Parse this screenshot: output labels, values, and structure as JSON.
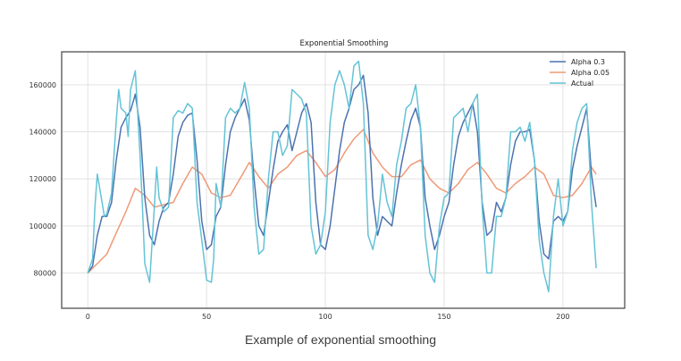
{
  "caption": "Example of exponential smoothing",
  "chart_data": {
    "type": "line",
    "title": "Exponential Smoothing",
    "xlabel": "",
    "ylabel": "",
    "xlim": [
      -11,
      226
    ],
    "ylim": [
      65000,
      174000
    ],
    "xticks": [
      0,
      50,
      100,
      150,
      200
    ],
    "yticks": [
      80000,
      100000,
      120000,
      140000,
      160000
    ],
    "grid": true,
    "legend_position": "top-right",
    "series": [
      {
        "name": "Alpha 0.3",
        "color": "#4c72b0",
        "points": [
          [
            0,
            80000
          ],
          [
            2,
            83000
          ],
          [
            4,
            96000
          ],
          [
            6,
            104000
          ],
          [
            8,
            104000
          ],
          [
            10,
            110000
          ],
          [
            12,
            128000
          ],
          [
            14,
            142000
          ],
          [
            16,
            146000
          ],
          [
            18,
            149000
          ],
          [
            20,
            156000
          ],
          [
            22,
            142000
          ],
          [
            24,
            112000
          ],
          [
            26,
            96000
          ],
          [
            28,
            92000
          ],
          [
            30,
            102000
          ],
          [
            32,
            108000
          ],
          [
            34,
            110000
          ],
          [
            36,
            122000
          ],
          [
            38,
            138000
          ],
          [
            40,
            144000
          ],
          [
            42,
            147000
          ],
          [
            44,
            148000
          ],
          [
            46,
            128000
          ],
          [
            48,
            102000
          ],
          [
            50,
            90000
          ],
          [
            52,
            92000
          ],
          [
            54,
            104000
          ],
          [
            56,
            108000
          ],
          [
            58,
            126000
          ],
          [
            60,
            140000
          ],
          [
            62,
            146000
          ],
          [
            64,
            150000
          ],
          [
            66,
            154000
          ],
          [
            68,
            145000
          ],
          [
            70,
            120000
          ],
          [
            72,
            100000
          ],
          [
            74,
            96000
          ],
          [
            76,
            110000
          ],
          [
            78,
            124000
          ],
          [
            80,
            136000
          ],
          [
            82,
            140000
          ],
          [
            84,
            143000
          ],
          [
            86,
            132000
          ],
          [
            88,
            140000
          ],
          [
            90,
            148000
          ],
          [
            92,
            152000
          ],
          [
            94,
            144000
          ],
          [
            96,
            110000
          ],
          [
            98,
            92000
          ],
          [
            100,
            90000
          ],
          [
            102,
            100000
          ],
          [
            104,
            116000
          ],
          [
            106,
            132000
          ],
          [
            108,
            144000
          ],
          [
            110,
            150000
          ],
          [
            112,
            158000
          ],
          [
            114,
            160000
          ],
          [
            116,
            164000
          ],
          [
            118,
            148000
          ],
          [
            120,
            112000
          ],
          [
            122,
            96000
          ],
          [
            124,
            104000
          ],
          [
            126,
            102000
          ],
          [
            128,
            100000
          ],
          [
            130,
            114000
          ],
          [
            132,
            126000
          ],
          [
            134,
            136000
          ],
          [
            136,
            145000
          ],
          [
            138,
            150000
          ],
          [
            140,
            142000
          ],
          [
            142,
            112000
          ],
          [
            144,
            100000
          ],
          [
            146,
            90000
          ],
          [
            148,
            96000
          ],
          [
            150,
            104000
          ],
          [
            152,
            110000
          ],
          [
            154,
            126000
          ],
          [
            156,
            138000
          ],
          [
            158,
            144000
          ],
          [
            160,
            148000
          ],
          [
            162,
            152000
          ],
          [
            164,
            140000
          ],
          [
            166,
            110000
          ],
          [
            168,
            96000
          ],
          [
            170,
            98000
          ],
          [
            172,
            110000
          ],
          [
            174,
            106000
          ],
          [
            176,
            112000
          ],
          [
            178,
            126000
          ],
          [
            180,
            136000
          ],
          [
            182,
            140000
          ],
          [
            184,
            140000
          ],
          [
            186,
            141000
          ],
          [
            188,
            128000
          ],
          [
            190,
            102000
          ],
          [
            192,
            88000
          ],
          [
            194,
            86000
          ],
          [
            196,
            102000
          ],
          [
            198,
            104000
          ],
          [
            200,
            102000
          ],
          [
            202,
            106000
          ],
          [
            204,
            124000
          ],
          [
            206,
            134000
          ],
          [
            208,
            142000
          ],
          [
            210,
            150000
          ],
          [
            212,
            122000
          ],
          [
            214,
            108000
          ]
        ]
      },
      {
        "name": "Alpha 0.05",
        "color": "#ee9a77",
        "points": [
          [
            0,
            80000
          ],
          [
            4,
            84000
          ],
          [
            8,
            88000
          ],
          [
            12,
            97000
          ],
          [
            16,
            106000
          ],
          [
            20,
            116000
          ],
          [
            24,
            113000
          ],
          [
            28,
            108000
          ],
          [
            32,
            109000
          ],
          [
            36,
            110000
          ],
          [
            40,
            118000
          ],
          [
            44,
            125000
          ],
          [
            48,
            122000
          ],
          [
            52,
            114000
          ],
          [
            56,
            112000
          ],
          [
            60,
            113000
          ],
          [
            64,
            120000
          ],
          [
            68,
            127000
          ],
          [
            72,
            121000
          ],
          [
            76,
            116000
          ],
          [
            80,
            122000
          ],
          [
            84,
            125000
          ],
          [
            88,
            130000
          ],
          [
            92,
            132000
          ],
          [
            96,
            127000
          ],
          [
            100,
            121000
          ],
          [
            104,
            124000
          ],
          [
            108,
            131000
          ],
          [
            112,
            137000
          ],
          [
            116,
            141000
          ],
          [
            120,
            131000
          ],
          [
            124,
            125000
          ],
          [
            128,
            121000
          ],
          [
            132,
            121000
          ],
          [
            136,
            126000
          ],
          [
            140,
            128000
          ],
          [
            144,
            120000
          ],
          [
            148,
            116000
          ],
          [
            152,
            114000
          ],
          [
            156,
            118000
          ],
          [
            160,
            124000
          ],
          [
            164,
            127000
          ],
          [
            168,
            122000
          ],
          [
            172,
            116000
          ],
          [
            176,
            114000
          ],
          [
            180,
            118000
          ],
          [
            184,
            121000
          ],
          [
            188,
            125000
          ],
          [
            192,
            122000
          ],
          [
            196,
            113000
          ],
          [
            200,
            112000
          ],
          [
            204,
            113000
          ],
          [
            208,
            118000
          ],
          [
            212,
            125000
          ],
          [
            214,
            122000
          ]
        ]
      },
      {
        "name": "Actual",
        "color": "#64c3d6",
        "points": [
          [
            0,
            80000
          ],
          [
            2,
            86000
          ],
          [
            3,
            108000
          ],
          [
            4,
            122000
          ],
          [
            6,
            110000
          ],
          [
            7,
            104000
          ],
          [
            8,
            105000
          ],
          [
            10,
            114000
          ],
          [
            12,
            145000
          ],
          [
            13,
            158000
          ],
          [
            14,
            150000
          ],
          [
            16,
            148000
          ],
          [
            17,
            138000
          ],
          [
            18,
            158000
          ],
          [
            20,
            166000
          ],
          [
            22,
            130000
          ],
          [
            23,
            108000
          ],
          [
            24,
            84000
          ],
          [
            26,
            76000
          ],
          [
            28,
            108000
          ],
          [
            29,
            125000
          ],
          [
            30,
            112000
          ],
          [
            32,
            106000
          ],
          [
            34,
            108000
          ],
          [
            36,
            146000
          ],
          [
            38,
            149000
          ],
          [
            40,
            148000
          ],
          [
            42,
            152000
          ],
          [
            44,
            150000
          ],
          [
            46,
            110000
          ],
          [
            48,
            94000
          ],
          [
            50,
            77000
          ],
          [
            52,
            76000
          ],
          [
            53,
            86000
          ],
          [
            54,
            118000
          ],
          [
            56,
            108000
          ],
          [
            58,
            146000
          ],
          [
            60,
            150000
          ],
          [
            62,
            148000
          ],
          [
            64,
            150000
          ],
          [
            66,
            161000
          ],
          [
            68,
            150000
          ],
          [
            70,
            108000
          ],
          [
            72,
            88000
          ],
          [
            74,
            90000
          ],
          [
            76,
            120000
          ],
          [
            78,
            140000
          ],
          [
            80,
            140000
          ],
          [
            82,
            130000
          ],
          [
            84,
            134000
          ],
          [
            86,
            158000
          ],
          [
            88,
            156000
          ],
          [
            90,
            154000
          ],
          [
            92,
            148000
          ],
          [
            94,
            100000
          ],
          [
            96,
            88000
          ],
          [
            98,
            92000
          ],
          [
            100,
            106000
          ],
          [
            102,
            144000
          ],
          [
            104,
            160000
          ],
          [
            106,
            166000
          ],
          [
            108,
            160000
          ],
          [
            110,
            150000
          ],
          [
            112,
            168000
          ],
          [
            114,
            170000
          ],
          [
            116,
            152000
          ],
          [
            118,
            96000
          ],
          [
            120,
            90000
          ],
          [
            122,
            100000
          ],
          [
            124,
            122000
          ],
          [
            126,
            110000
          ],
          [
            128,
            104000
          ],
          [
            130,
            126000
          ],
          [
            132,
            136000
          ],
          [
            134,
            150000
          ],
          [
            136,
            152000
          ],
          [
            138,
            160000
          ],
          [
            140,
            142000
          ],
          [
            142,
            96000
          ],
          [
            144,
            80000
          ],
          [
            146,
            76000
          ],
          [
            148,
            100000
          ],
          [
            150,
            112000
          ],
          [
            152,
            114000
          ],
          [
            154,
            146000
          ],
          [
            156,
            148000
          ],
          [
            158,
            150000
          ],
          [
            160,
            140000
          ],
          [
            162,
            152000
          ],
          [
            164,
            156000
          ],
          [
            166,
            108000
          ],
          [
            168,
            80000
          ],
          [
            170,
            80000
          ],
          [
            172,
            104000
          ],
          [
            174,
            104000
          ],
          [
            176,
            112000
          ],
          [
            178,
            140000
          ],
          [
            180,
            140000
          ],
          [
            182,
            142000
          ],
          [
            184,
            136000
          ],
          [
            186,
            144000
          ],
          [
            188,
            128000
          ],
          [
            190,
            94000
          ],
          [
            192,
            80000
          ],
          [
            194,
            72000
          ],
          [
            196,
            104000
          ],
          [
            198,
            120000
          ],
          [
            200,
            100000
          ],
          [
            202,
            106000
          ],
          [
            204,
            132000
          ],
          [
            206,
            144000
          ],
          [
            208,
            150000
          ],
          [
            210,
            152000
          ],
          [
            212,
            110000
          ],
          [
            214,
            82000
          ]
        ]
      }
    ]
  }
}
